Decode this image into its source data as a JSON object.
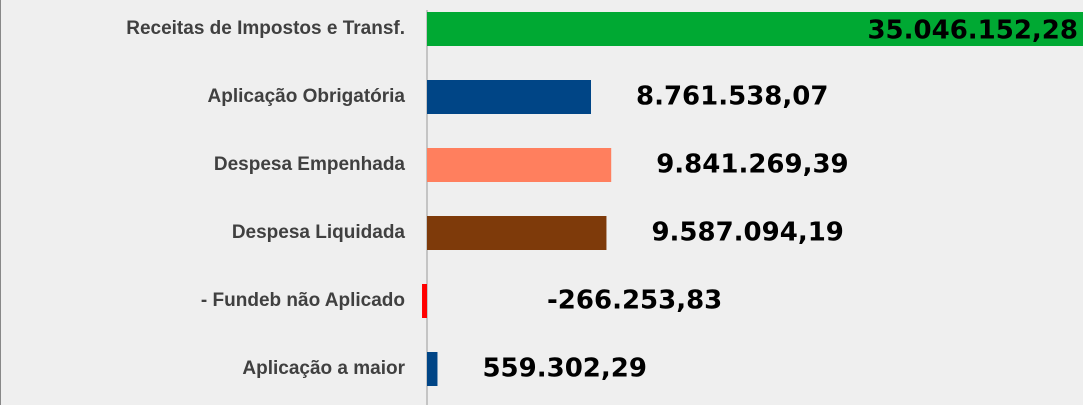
{
  "chart_data": {
    "type": "bar",
    "orientation": "horizontal",
    "categories": [
      "Receitas de Impostos e Transf.",
      "Aplicação Obrigatória",
      "Despesa Empenhada",
      "Despesa Liquidada",
      "- Fundeb não Aplicado",
      "Aplicação a maior"
    ],
    "values": [
      35046152.28,
      8761538.07,
      9841269.39,
      9587094.19,
      -266253.83,
      559302.29
    ],
    "value_labels": [
      "35.046.152,28",
      "8.761.538,07",
      "9.841.269,39",
      "9.587.094,19",
      "-266.253,83",
      "559.302,29"
    ],
    "colors": [
      "#00a933",
      "#004586",
      "#ff7f5e",
      "#7e3a0a",
      "#ff0000",
      "#004586"
    ]
  }
}
